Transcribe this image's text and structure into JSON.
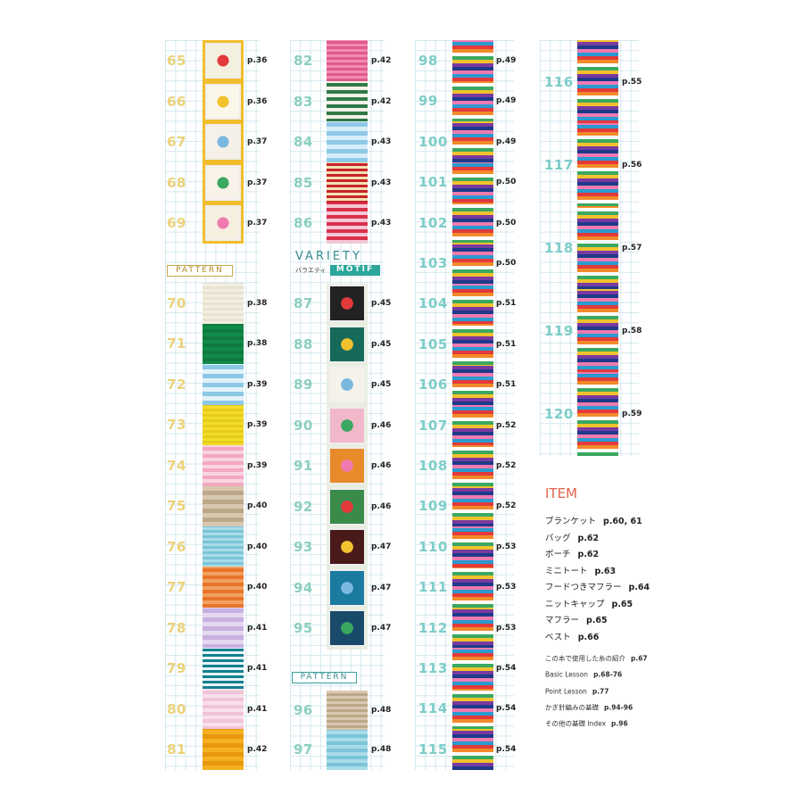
{
  "col1": {
    "motif": [
      {
        "no": "65",
        "page": "p.36"
      },
      {
        "no": "66",
        "page": "p.36"
      },
      {
        "no": "67",
        "page": "p.37"
      },
      {
        "no": "68",
        "page": "p.37"
      },
      {
        "no": "69",
        "page": "p.37"
      }
    ],
    "pattern_label": "PATTERN",
    "pattern": [
      {
        "no": "70",
        "page": "p.38"
      },
      {
        "no": "71",
        "page": "p.38"
      },
      {
        "no": "72",
        "page": "p.39"
      },
      {
        "no": "73",
        "page": "p.39"
      },
      {
        "no": "74",
        "page": "p.39"
      },
      {
        "no": "75",
        "page": "p.40"
      },
      {
        "no": "76",
        "page": "p.40"
      },
      {
        "no": "77",
        "page": "p.40"
      },
      {
        "no": "78",
        "page": "p.41"
      },
      {
        "no": "79",
        "page": "p.41"
      },
      {
        "no": "80",
        "page": "p.41"
      },
      {
        "no": "81",
        "page": "p.42"
      }
    ]
  },
  "col2": {
    "pattern": [
      {
        "no": "82",
        "page": "p.42"
      },
      {
        "no": "83",
        "page": "p.42"
      },
      {
        "no": "84",
        "page": "p.43"
      },
      {
        "no": "85",
        "page": "p.43"
      },
      {
        "no": "86",
        "page": "p.43"
      }
    ],
    "variety": "VARIETY",
    "variety_jp": "バラエティ",
    "motif_label": "MOTIF",
    "motif": [
      {
        "no": "87",
        "page": "p.45"
      },
      {
        "no": "88",
        "page": "p.45"
      },
      {
        "no": "89",
        "page": "p.45"
      },
      {
        "no": "90",
        "page": "p.46"
      },
      {
        "no": "91",
        "page": "p.46"
      },
      {
        "no": "92",
        "page": "p.46"
      },
      {
        "no": "93",
        "page": "p.47"
      },
      {
        "no": "94",
        "page": "p.47"
      },
      {
        "no": "95",
        "page": "p.47"
      }
    ],
    "pattern_label": "PATTERN",
    "pattern2": [
      {
        "no": "96",
        "page": "p.48"
      },
      {
        "no": "97",
        "page": "p.48"
      }
    ]
  },
  "col3": {
    "pattern": [
      {
        "no": "98",
        "page": "p.49"
      },
      {
        "no": "99",
        "page": "p.49"
      },
      {
        "no": "100",
        "page": "p.49"
      },
      {
        "no": "101",
        "page": "p.50"
      },
      {
        "no": "102",
        "page": "p.50"
      },
      {
        "no": "103",
        "page": "p.50"
      },
      {
        "no": "104",
        "page": "p.51"
      },
      {
        "no": "105",
        "page": "p.51"
      },
      {
        "no": "106",
        "page": "p.51"
      },
      {
        "no": "107",
        "page": "p.52"
      },
      {
        "no": "108",
        "page": "p.52"
      },
      {
        "no": "109",
        "page": "p.52"
      },
      {
        "no": "110",
        "page": "p.53"
      },
      {
        "no": "111",
        "page": "p.53"
      },
      {
        "no": "112",
        "page": "p.53"
      },
      {
        "no": "113",
        "page": "p.54"
      },
      {
        "no": "114",
        "page": "p.54"
      },
      {
        "no": "115",
        "page": "p.54"
      }
    ]
  },
  "col4": {
    "pattern": [
      {
        "no": "116",
        "page": "p.55"
      },
      {
        "no": "117",
        "page": "p.56"
      },
      {
        "no": "118",
        "page": "p.57"
      },
      {
        "no": "119",
        "page": "p.58"
      },
      {
        "no": "120",
        "page": "p.59"
      }
    ],
    "item_title": "ITEM",
    "items": [
      {
        "name": "ブランケット",
        "page": "p.60, 61"
      },
      {
        "name": "バッグ",
        "page": "p.62"
      },
      {
        "name": "ポーチ",
        "page": "p.62"
      },
      {
        "name": "ミニトート",
        "page": "p.63"
      },
      {
        "name": "フードつきマフラー",
        "page": "p.64"
      },
      {
        "name": "ニットキャップ",
        "page": "p.65"
      },
      {
        "name": "マフラー",
        "page": "p.65"
      },
      {
        "name": "ベスト",
        "page": "p.66"
      }
    ],
    "lessons": [
      {
        "name": "この本で使用した糸の紹介",
        "page": "p.67"
      },
      {
        "name": "Basic Lesson",
        "page": "p.68-76"
      },
      {
        "name": "Point Lesson",
        "page": "p.77"
      },
      {
        "name": "かぎ針編みの基礎",
        "page": "p.94-96"
      },
      {
        "name": "その他の基礎 Index",
        "page": "p.96"
      }
    ]
  }
}
